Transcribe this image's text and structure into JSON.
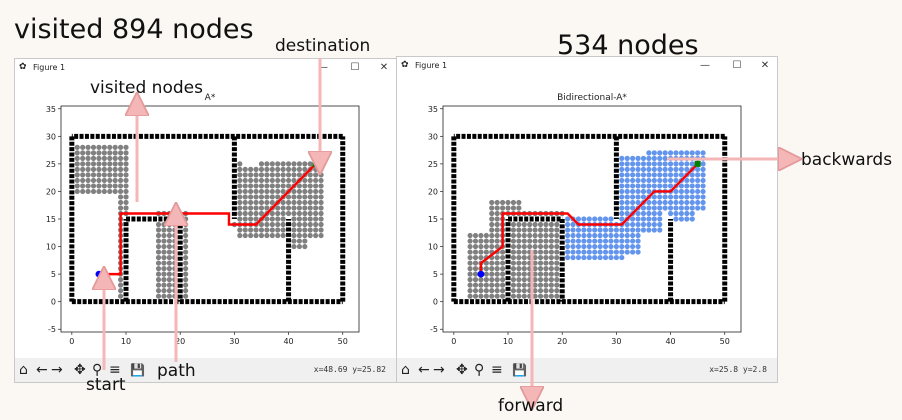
{
  "captions": {
    "visited_total": "visited 894 nodes",
    "bidir_total": "534 nodes",
    "destination": "destination",
    "visited_nodes": "visited nodes",
    "start": "start",
    "path": "path",
    "backwards": "backwards",
    "forward": "forward"
  },
  "windows": [
    {
      "title": "Figure 1",
      "plot_title": "A*",
      "coords": "x=48.69 y=25.82",
      "controls": {
        "minimize": "—",
        "maximize": "☐",
        "close": "✕"
      }
    },
    {
      "title": "Figure 1",
      "plot_title": "Bidirectional-A*",
      "coords": "x=25.8 y=2.8",
      "controls": {
        "minimize": "—",
        "maximize": "☐",
        "close": "✕"
      }
    }
  ],
  "toolbar_icons": [
    "home-icon",
    "back-arrow-icon",
    "forward-arrow-icon",
    "pan-icon",
    "zoom-icon",
    "configure-subplots-icon",
    "save-icon"
  ],
  "toolbar_glyphs": {
    "home": "⌂",
    "back": "←",
    "forward": "→",
    "pan": "✥",
    "zoom": "⚲",
    "configure": "≡",
    "save": "💾"
  },
  "colors": {
    "obstacle": "#000000",
    "visited_forward": "#808080",
    "visited_backward": "#6495ed",
    "path": "#ff0000",
    "start": "#0000ff",
    "goal": "#008000",
    "annotation_arrow": "#f4b6b6"
  },
  "chart_data": [
    {
      "type": "scatter",
      "title": "A*",
      "xlim": [
        -2,
        53
      ],
      "ylim": [
        -5.5,
        35.5
      ],
      "xticks": [
        0,
        10,
        20,
        30,
        40,
        50
      ],
      "yticks": [
        -5,
        0,
        5,
        10,
        15,
        20,
        25,
        30,
        35
      ],
      "start": [
        5,
        5
      ],
      "goal": [
        45,
        25
      ],
      "path": [
        [
          5,
          5
        ],
        [
          9,
          5
        ],
        [
          9,
          16
        ],
        [
          29,
          16
        ],
        [
          29,
          14
        ],
        [
          34,
          14
        ],
        [
          45,
          25
        ]
      ],
      "visited_forward": [
        [
          0,
          10,
          20,
          28
        ],
        [
          9,
          10,
          1,
          27
        ],
        [
          16,
          21,
          1,
          16
        ],
        [
          31,
          35,
          12,
          24
        ],
        [
          35,
          46,
          12,
          25
        ],
        [
          40,
          43,
          10,
          25
        ],
        [
          30,
          31,
          14,
          25
        ]
      ],
      "visited_backward": []
    },
    {
      "type": "scatter",
      "title": "Bidirectional-A*",
      "xlim": [
        -2,
        53
      ],
      "ylim": [
        -5.5,
        35.5
      ],
      "xticks": [
        0,
        10,
        20,
        30,
        40,
        50
      ],
      "yticks": [
        -5,
        0,
        5,
        10,
        15,
        20,
        25,
        30,
        35
      ],
      "start": [
        5,
        5
      ],
      "goal": [
        45,
        25
      ],
      "path": [
        [
          5,
          5
        ],
        [
          5,
          7
        ],
        [
          9,
          10
        ],
        [
          9,
          16
        ],
        [
          21,
          16
        ],
        [
          23,
          14
        ],
        [
          31,
          14
        ],
        [
          37,
          20
        ],
        [
          40,
          20
        ],
        [
          44,
          24
        ],
        [
          45,
          25
        ]
      ],
      "visited_forward": [
        [
          3,
          10,
          1,
          12
        ],
        [
          7,
          9,
          1,
          18
        ],
        [
          10,
          12,
          1,
          18
        ],
        [
          12,
          20,
          1,
          16
        ]
      ],
      "visited_backward": [
        [
          20,
          31,
          8,
          15
        ],
        [
          31,
          34,
          9,
          20
        ],
        [
          34,
          38,
          13,
          21
        ],
        [
          31,
          36,
          20,
          26
        ],
        [
          36,
          46,
          20,
          27
        ],
        [
          38,
          46,
          17,
          21
        ],
        [
          40,
          44,
          15,
          18
        ]
      ]
    }
  ]
}
